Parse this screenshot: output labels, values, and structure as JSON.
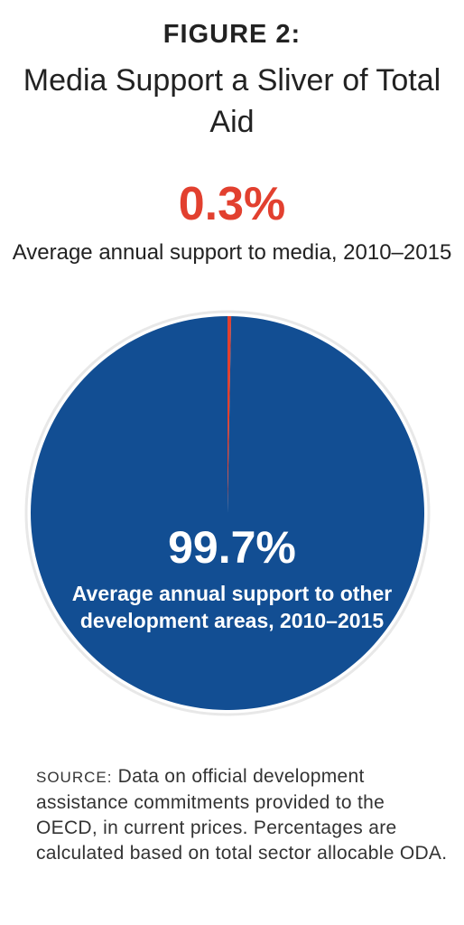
{
  "figure_label": "FIGURE 2:",
  "colors": {
    "media": "#e2402f",
    "other": "#124e93",
    "ring": "#e8e8e8"
  },
  "chart_data": {
    "type": "pie",
    "title": "Media Support a Sliver of Total Aid",
    "slices": [
      {
        "label": "Average annual support to media, 2010–2015",
        "value": 0.3,
        "display": "0.3%",
        "color": "#e2402f"
      },
      {
        "label": "Average annual support to other development areas, 2010–2015",
        "value": 99.7,
        "display": "99.7%",
        "color": "#124e93"
      }
    ]
  },
  "source": {
    "prefix": "SOURCE:",
    "text": "Data on official development assistance commitments provided to the OECD, in current prices. Percentages are calculated based on total sector allocable ODA."
  }
}
